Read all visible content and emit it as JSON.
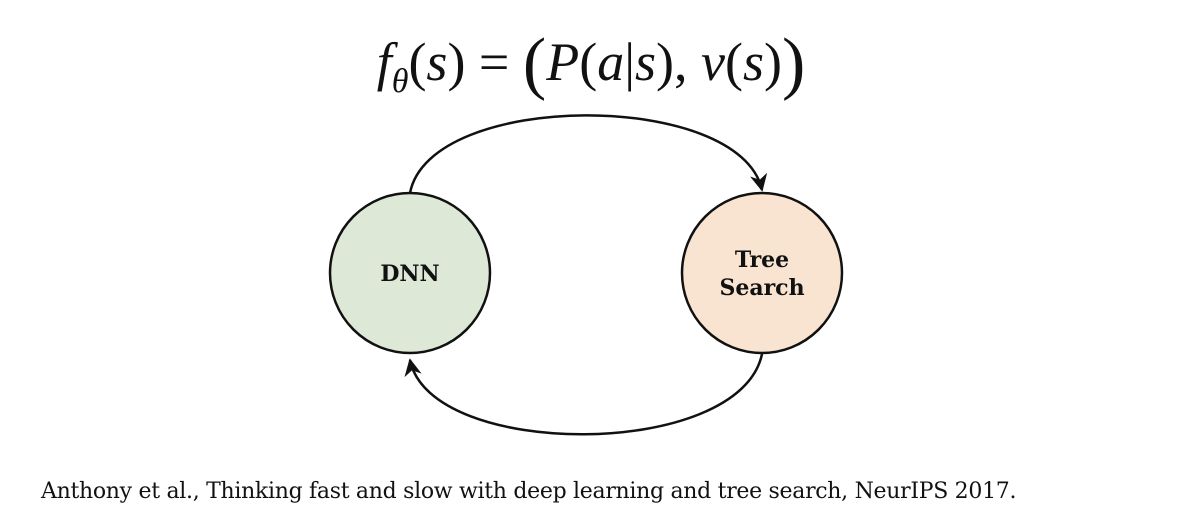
{
  "formula": {
    "f": "f",
    "theta": "θ",
    "arg_open": "(",
    "s1": "s",
    "arg_close": ")",
    "equals": " = ",
    "big_open": "(",
    "P": "P",
    "p_open": "(",
    "a": "a",
    "bar": "|",
    "s2": "s",
    "p_close": ")",
    "comma": ", ",
    "v": "v",
    "v_open": "(",
    "s3": "s",
    "v_close": ")",
    "big_close": ")"
  },
  "diagram": {
    "nodes": [
      {
        "label_lines": [
          "DNN"
        ],
        "fill": "#dde8d6"
      },
      {
        "label_lines": [
          "Tree",
          "Search"
        ],
        "fill": "#f8e4d0"
      }
    ],
    "stroke_color": "#111111"
  },
  "citation": "Anthony et al., Thinking fast and slow with deep learning and tree search, NeurIPS 2017."
}
